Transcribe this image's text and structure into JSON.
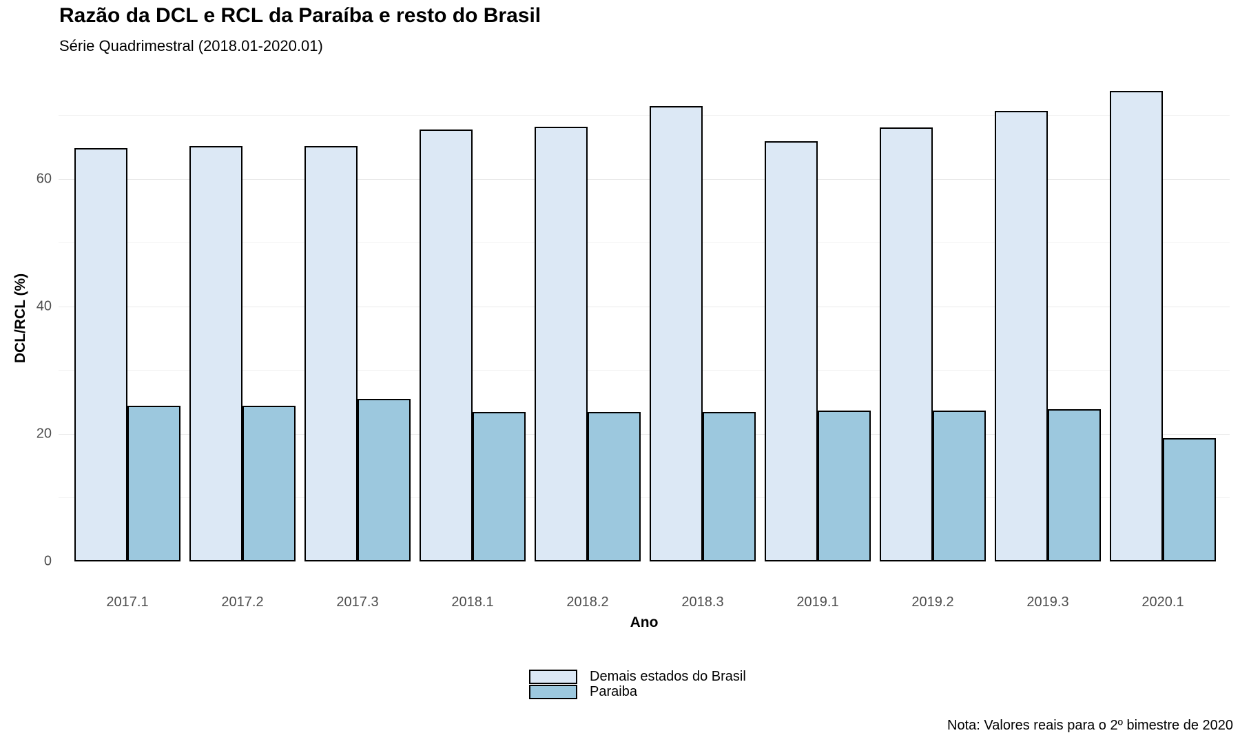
{
  "title": "Razão da DCL e RCL da Paraíba e resto do Brasil",
  "subtitle": "Série Quadrimestral (2018.01-2020.01)",
  "note": "Nota: Valores reais para o 2º bimestre de 2020",
  "chart_data": {
    "type": "bar",
    "grouped": true,
    "title": "Razão da DCL e RCL da Paraíba e resto do Brasil",
    "subtitle": "Série Quadrimestral (2018.01-2020.01)",
    "xlabel": "Ano",
    "ylabel": "DCL/RCL (%)",
    "categories": [
      "2017.1",
      "2017.2",
      "2017.3",
      "2018.1",
      "2018.2",
      "2018.3",
      "2019.1",
      "2019.2",
      "2019.3",
      "2020.1"
    ],
    "series": [
      {
        "name": "Demais estados do Brasil",
        "color": "#dce8f5",
        "values": [
          64.9,
          65.2,
          65.2,
          67.8,
          68.2,
          71.4,
          65.9,
          68.1,
          70.7,
          73.8
        ]
      },
      {
        "name": "Paraiba",
        "color": "#9cc8de",
        "values": [
          24.4,
          24.4,
          25.5,
          23.5,
          23.5,
          23.5,
          23.7,
          23.7,
          23.9,
          19.4
        ]
      }
    ],
    "yticks": [
      0,
      20,
      40,
      60
    ],
    "y_minor_gridlines": [
      10,
      30,
      50,
      70
    ],
    "ylim": [
      0,
      76.2
    ],
    "grid": "horizontal only, light gray, white background",
    "legend_position": "bottom-center",
    "bar_border_color": "#000000",
    "tick_label_color": "#4d4d4d"
  }
}
